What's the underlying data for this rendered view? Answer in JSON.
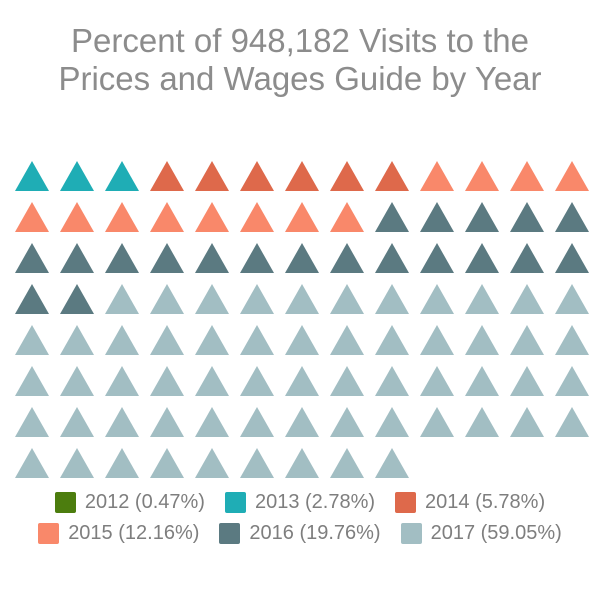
{
  "title": {
    "line1": "Percent of 948,182 Visits to the",
    "line2": "Prices and Wages Guide by Year",
    "text_color": "#8c8c8c"
  },
  "chart_data": {
    "type": "pictogram",
    "icon_shape": "triangle-up",
    "title": "Percent of 948,182 Visits to the Prices and Wages Guide by Year",
    "total_visits_label": "948,182",
    "total_icons": 100,
    "icons_per_row": 13,
    "percent_per_icon": 1,
    "legend_position": "bottom",
    "grid": false,
    "categories": [
      "2012",
      "2013",
      "2014",
      "2015",
      "2016",
      "2017"
    ],
    "series": [
      {
        "name": "2012",
        "percent": 0.47,
        "icons": 0,
        "color": "#4c7d0e",
        "legend_label": "2012 (0.47%)"
      },
      {
        "name": "2013",
        "percent": 2.78,
        "icons": 3,
        "color": "#1fadb5",
        "legend_label": "2013 (2.78%)"
      },
      {
        "name": "2014",
        "percent": 5.78,
        "icons": 6,
        "color": "#de694b",
        "legend_label": "2014 (5.78%)"
      },
      {
        "name": "2015",
        "percent": 12.16,
        "icons": 12,
        "color": "#f9886a",
        "legend_label": "2015 (12.16%)"
      },
      {
        "name": "2016",
        "percent": 19.76,
        "icons": 20,
        "color": "#5b7a81",
        "legend_label": "2016 (19.76%)"
      },
      {
        "name": "2017",
        "percent": 59.05,
        "icons": 59,
        "color": "#a2bec3",
        "legend_label": "2017 (59.05%)"
      }
    ]
  },
  "legend": {
    "rows": [
      [
        "2012",
        "2013",
        "2014"
      ],
      [
        "2015",
        "2016",
        "2017"
      ]
    ],
    "text_color": "#7e7e7e"
  }
}
